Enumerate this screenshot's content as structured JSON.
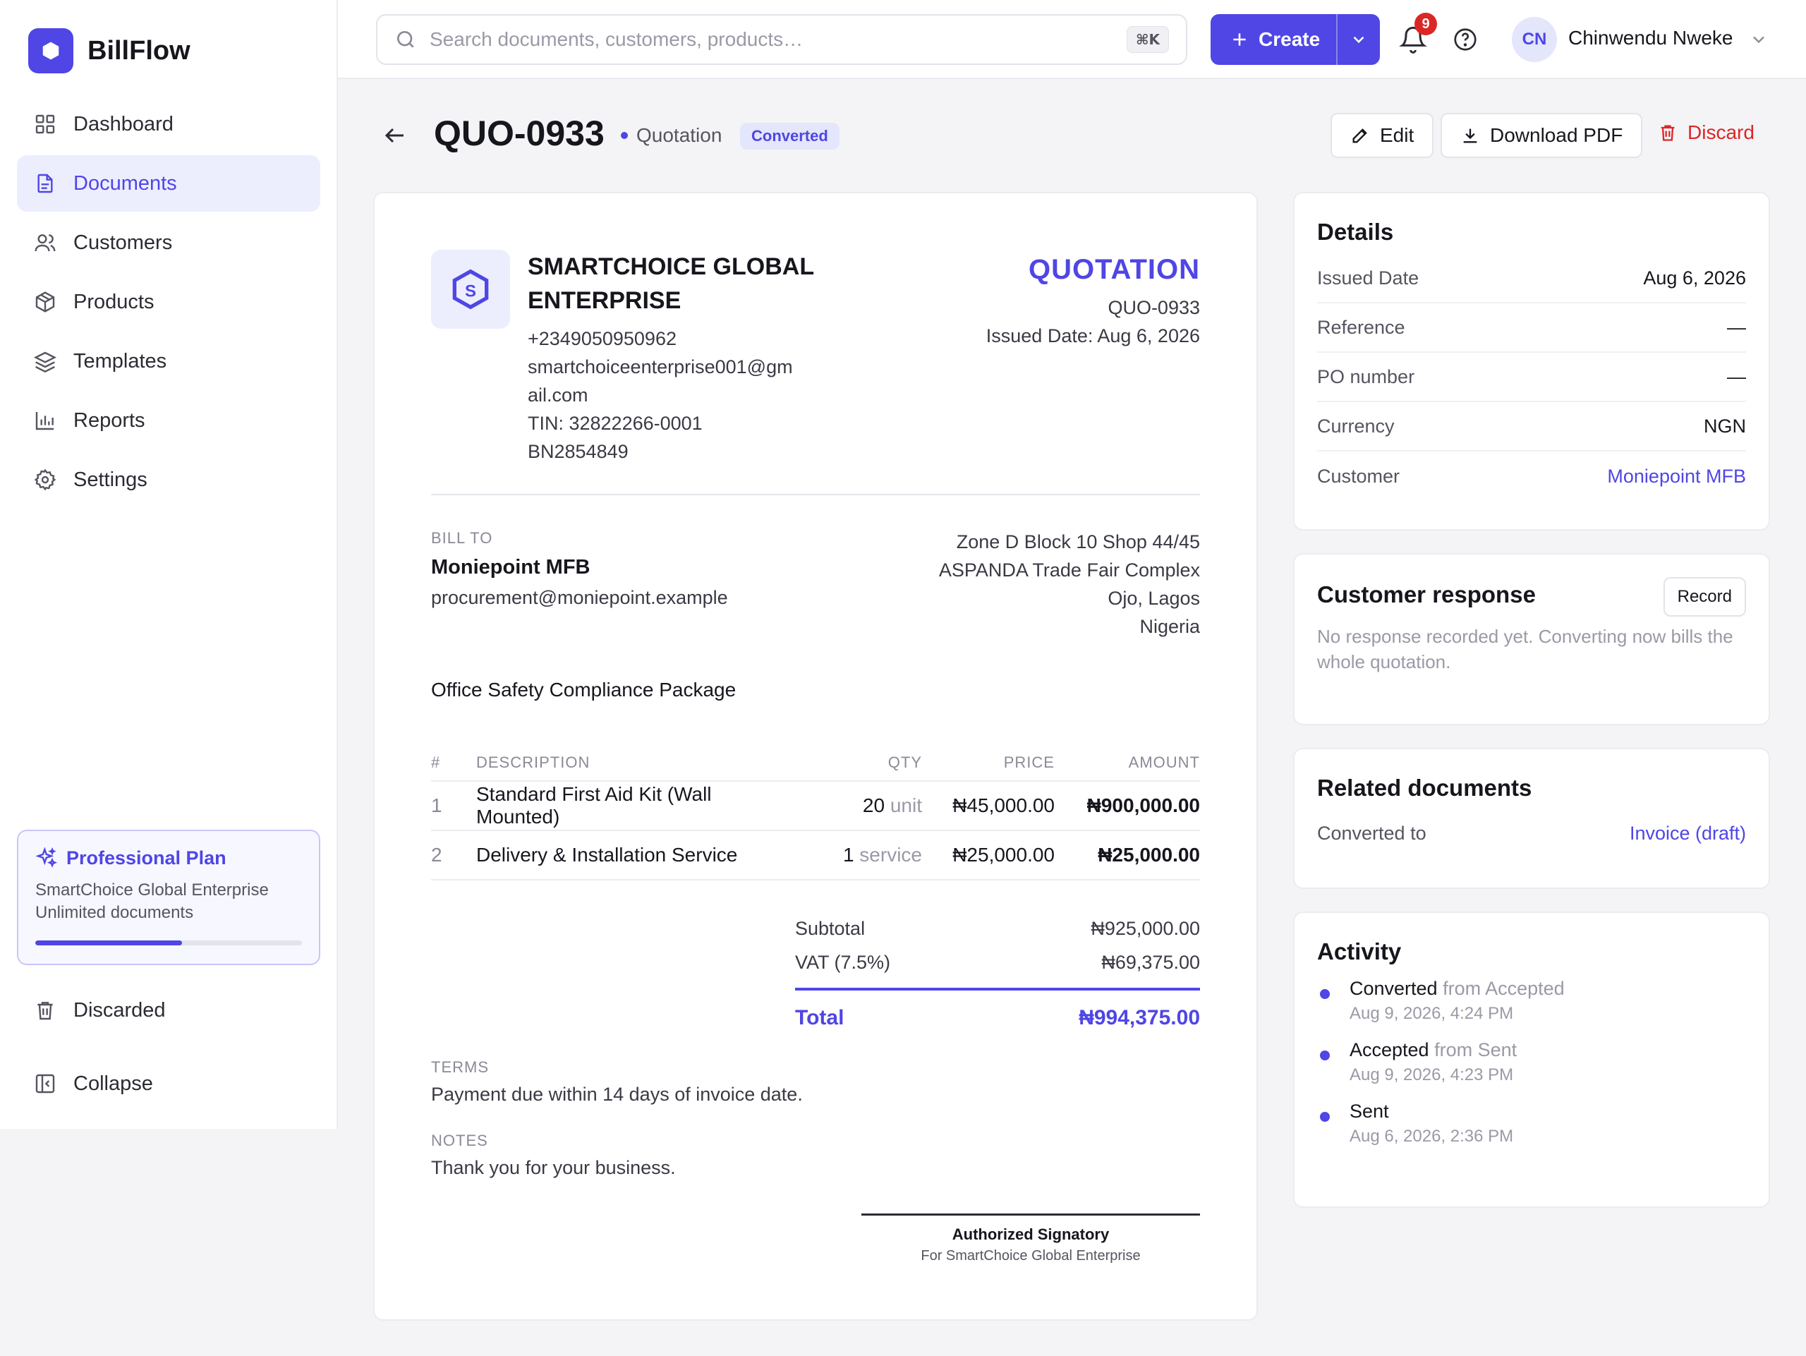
{
  "app": {
    "name": "BillFlow"
  },
  "sidebar": {
    "items": [
      {
        "label": "Dashboard",
        "icon": "dashboard-icon"
      },
      {
        "label": "Documents",
        "icon": "document-icon",
        "active": true
      },
      {
        "label": "Customers",
        "icon": "users-icon"
      },
      {
        "label": "Products",
        "icon": "box-icon"
      },
      {
        "label": "Templates",
        "icon": "layers-icon"
      },
      {
        "label": "Reports",
        "icon": "bar-chart-icon"
      },
      {
        "label": "Settings",
        "icon": "gear-icon"
      }
    ],
    "plan": {
      "title": "Professional Plan",
      "company": "SmartChoice Global Enterprise",
      "limit": "Unlimited documents",
      "usage_fraction": 0.55
    },
    "discarded_label": "Discarded",
    "collapse_label": "Collapse"
  },
  "topbar": {
    "search_placeholder": "Search documents, customers, products…",
    "shortcut": "⌘K",
    "create_label": "Create",
    "notification_count": "9",
    "user_initials": "CN",
    "user_name": "Chinwendu Nweke"
  },
  "header": {
    "doc_number": "QUO-0933",
    "doc_type": "Quotation",
    "status": "Converted",
    "edit_label": "Edit",
    "download_label": "Download PDF",
    "discard_label": "Discard"
  },
  "document": {
    "company": {
      "logo_letter": "S",
      "name": "SMARTCHOICE GLOBAL ENTERPRISE",
      "phone": "+2349050950962",
      "email_line1": "smartchoiceenterprise001@gm",
      "email_line2": "ail.com",
      "tin": "TIN: 32822266-0001",
      "bn": "BN2854849"
    },
    "kind": "QUOTATION",
    "number": "QUO-0933",
    "issued": "Issued Date: Aug 6, 2026",
    "bill_to_label": "BILL TO",
    "bill_to_name": "Moniepoint MFB",
    "bill_to_email": "procurement@moniepoint.example",
    "address": [
      "Zone D Block 10 Shop 44/45",
      "ASPANDA Trade Fair Complex",
      "Ojo, Lagos",
      "Nigeria"
    ],
    "subject": "Office Safety Compliance Package",
    "columns": {
      "num": "#",
      "desc": "DESCRIPTION",
      "qty": "QTY",
      "price": "PRICE",
      "amount": "AMOUNT"
    },
    "lines": [
      {
        "num": "1",
        "desc": "Standard First Aid Kit (Wall Mounted)",
        "qty": "20",
        "unit": "unit",
        "price": "₦45,000.00",
        "amount": "₦900,000.00"
      },
      {
        "num": "2",
        "desc": "Delivery & Installation Service",
        "qty": "1",
        "unit": "service",
        "price": "₦25,000.00",
        "amount": "₦25,000.00"
      }
    ],
    "subtotal_label": "Subtotal",
    "subtotal": "₦925,000.00",
    "vat_label": "VAT (7.5%)",
    "vat": "₦69,375.00",
    "total_label": "Total",
    "total": "₦994,375.00",
    "terms_label": "TERMS",
    "terms": "Payment due within 14 days of invoice date.",
    "notes_label": "NOTES",
    "notes": "Thank you for your business.",
    "signatory": "Authorized Signatory",
    "signatory_for": "For SmartChoice Global Enterprise"
  },
  "details": {
    "title": "Details",
    "rows": [
      {
        "k": "Issued Date",
        "v": "Aug 6, 2026"
      },
      {
        "k": "Reference",
        "v": "—"
      },
      {
        "k": "PO number",
        "v": "—"
      },
      {
        "k": "Currency",
        "v": "NGN"
      },
      {
        "k": "Customer",
        "v": "Moniepoint MFB"
      }
    ]
  },
  "response": {
    "title": "Customer response",
    "record_label": "Record",
    "text": "No response recorded yet. Converting now bills the whole quotation."
  },
  "related": {
    "title": "Related documents",
    "k": "Converted to",
    "v": "Invoice (draft)"
  },
  "activity": {
    "title": "Activity",
    "items": [
      {
        "action": "Converted",
        "from": "from Accepted",
        "time": "Aug 9, 2026, 4:24 PM"
      },
      {
        "action": "Accepted",
        "from": "from Sent",
        "time": "Aug 9, 2026, 4:23 PM"
      },
      {
        "action": "Sent",
        "from": "",
        "time": "Aug 6, 2026, 2:36 PM"
      }
    ]
  },
  "colors": {
    "accent": "#4f46e5",
    "danger": "#dc2626",
    "badge_bg": "#e4e6fb"
  }
}
